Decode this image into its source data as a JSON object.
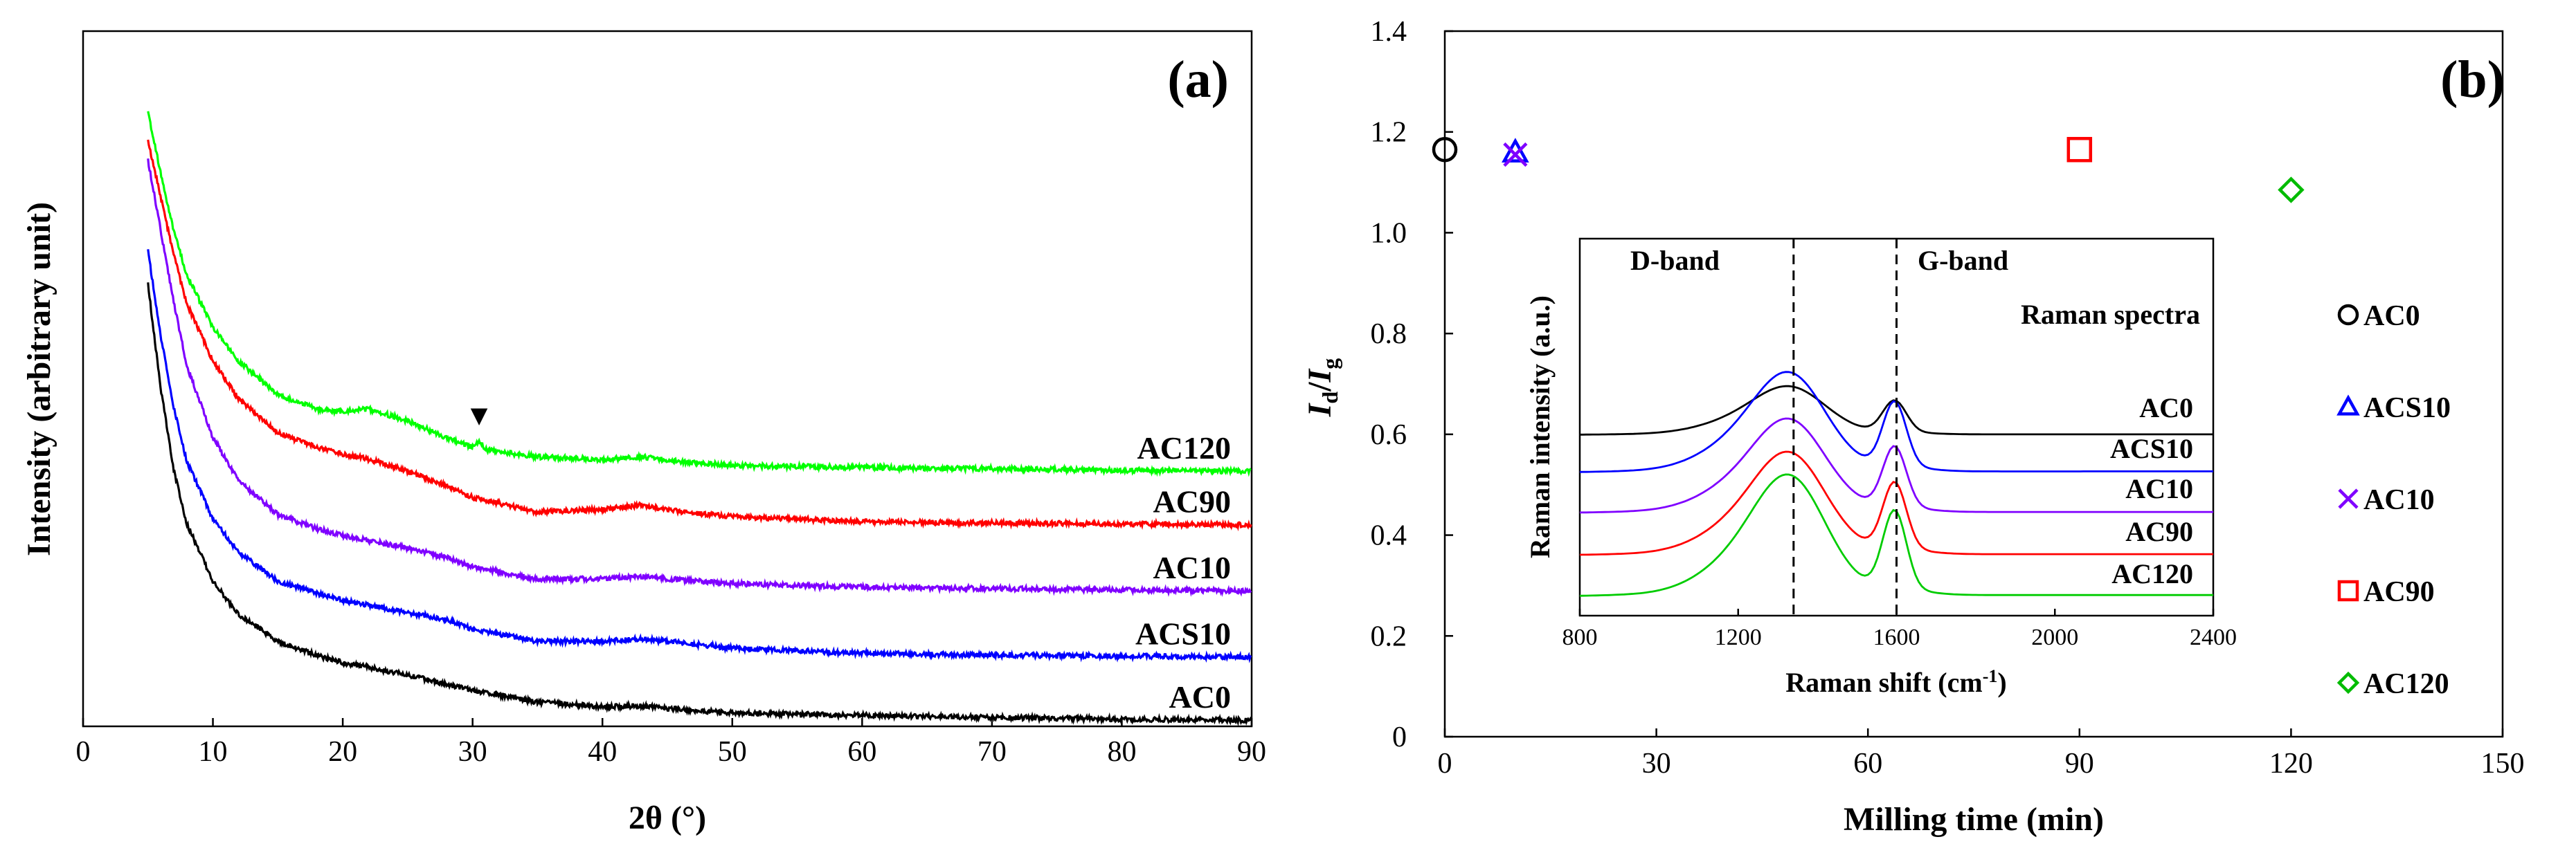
{
  "chart_data": [
    {
      "type": "line",
      "panel_label": "(a)",
      "title": "",
      "xlabel": "2θ (°)",
      "ylabel": "Intensity (arbitrary unit)",
      "xlim": [
        0,
        90
      ],
      "x_ticks": [
        0,
        10,
        20,
        30,
        40,
        50,
        60,
        70,
        80,
        90
      ],
      "y_ticks_shown": false,
      "grid": false,
      "legend": "inline labels at right end of each curve",
      "peak_marker": {
        "x": 30.5,
        "symbol": "▼",
        "series": "AC120"
      },
      "series": [
        {
          "name": "AC0",
          "color": "#000000",
          "points": [
            [
              5,
              9.2
            ],
            [
              6,
              7.0
            ],
            [
              7,
              5.3
            ],
            [
              8,
              4.2
            ],
            [
              10,
              3.0
            ],
            [
              12,
              2.3
            ],
            [
              15,
              1.75
            ],
            [
              18,
              1.45
            ],
            [
              20,
              1.3
            ],
            [
              22,
              1.2
            ],
            [
              25,
              1.05
            ],
            [
              28,
              0.85
            ],
            [
              30,
              0.72
            ],
            [
              35,
              0.48
            ],
            [
              40,
              0.38
            ],
            [
              43,
              0.4
            ],
            [
              46,
              0.32
            ],
            [
              50,
              0.25
            ],
            [
              60,
              0.2
            ],
            [
              70,
              0.16
            ],
            [
              80,
              0.12
            ],
            [
              90,
              0.1
            ]
          ]
        },
        {
          "name": "ACS10",
          "color": "#0000ff",
          "points": [
            [
              5,
              9.9
            ],
            [
              6,
              8.1
            ],
            [
              7,
              6.6
            ],
            [
              8,
              5.5
            ],
            [
              10,
              4.3
            ],
            [
              12,
              3.6
            ],
            [
              15,
              3.0
            ],
            [
              18,
              2.75
            ],
            [
              20,
              2.6
            ],
            [
              22,
              2.5
            ],
            [
              25,
              2.35
            ],
            [
              28,
              2.2
            ],
            [
              30,
              2.0
            ],
            [
              35,
              1.75
            ],
            [
              40,
              1.75
            ],
            [
              43,
              1.8
            ],
            [
              46,
              1.72
            ],
            [
              50,
              1.6
            ],
            [
              60,
              1.5
            ],
            [
              70,
              1.46
            ],
            [
              80,
              1.44
            ],
            [
              90,
              1.42
            ]
          ]
        },
        {
          "name": "AC10",
          "color": "#7f00ff",
          "points": [
            [
              5,
              11.8
            ],
            [
              6,
              10.3
            ],
            [
              7,
              8.8
            ],
            [
              8,
              7.5
            ],
            [
              10,
              6.0
            ],
            [
              12,
              5.1
            ],
            [
              15,
              4.4
            ],
            [
              18,
              4.1
            ],
            [
              20,
              3.95
            ],
            [
              22,
              3.85
            ],
            [
              25,
              3.7
            ],
            [
              28,
              3.5
            ],
            [
              30,
              3.3
            ],
            [
              35,
              3.05
            ],
            [
              40,
              3.05
            ],
            [
              43,
              3.1
            ],
            [
              46,
              3.03
            ],
            [
              50,
              2.95
            ],
            [
              60,
              2.88
            ],
            [
              70,
              2.85
            ],
            [
              80,
              2.82
            ],
            [
              90,
              2.8
            ]
          ]
        },
        {
          "name": "AC90",
          "color": "#ff0000",
          "points": [
            [
              5,
              12.2
            ],
            [
              6,
              11.0
            ],
            [
              7,
              9.8
            ],
            [
              8,
              8.8
            ],
            [
              10,
              7.6
            ],
            [
              12,
              6.8
            ],
            [
              15,
              6.1
            ],
            [
              18,
              5.8
            ],
            [
              20,
              5.65
            ],
            [
              22,
              5.55
            ],
            [
              25,
              5.3
            ],
            [
              28,
              5.0
            ],
            [
              30,
              4.75
            ],
            [
              35,
              4.45
            ],
            [
              40,
              4.5
            ],
            [
              43,
              4.6
            ],
            [
              46,
              4.45
            ],
            [
              50,
              4.35
            ],
            [
              60,
              4.25
            ],
            [
              70,
              4.22
            ],
            [
              80,
              4.2
            ],
            [
              90,
              4.18
            ]
          ]
        },
        {
          "name": "AC120",
          "color": "#00ff00",
          "points": [
            [
              5,
              12.8
            ],
            [
              6,
              11.5
            ],
            [
              7,
              10.3
            ],
            [
              8,
              9.4
            ],
            [
              10,
              8.3
            ],
            [
              12,
              7.6
            ],
            [
              15,
              6.9
            ],
            [
              18,
              6.6
            ],
            [
              20,
              6.55
            ],
            [
              22,
              6.6
            ],
            [
              25,
              6.35
            ],
            [
              28,
              6.0
            ],
            [
              30,
              5.8
            ],
            [
              30.5,
              5.95
            ],
            [
              31,
              5.75
            ],
            [
              35,
              5.6
            ],
            [
              40,
              5.55
            ],
            [
              43,
              5.6
            ],
            [
              46,
              5.5
            ],
            [
              50,
              5.42
            ],
            [
              60,
              5.38
            ],
            [
              70,
              5.35
            ],
            [
              80,
              5.32
            ],
            [
              90,
              5.3
            ]
          ]
        }
      ],
      "series_label_text": [
        "AC120",
        "AC90",
        "AC10",
        "ACS10",
        "AC0"
      ]
    },
    {
      "type": "scatter",
      "panel_label": "(b)",
      "title": "",
      "xlabel": "Milling time (min)",
      "ylabel": "Id/Ig",
      "ylabel_main": "I",
      "ylabel_sub_1": "d",
      "ylabel_slash": "/",
      "ylabel_sub_2": "g",
      "xlim": [
        0,
        150
      ],
      "ylim": [
        0,
        1.4
      ],
      "x_ticks": [
        0,
        30,
        60,
        90,
        120,
        150
      ],
      "y_ticks": [
        "0",
        "0.2",
        "0.4",
        "0.6",
        "0.8",
        "1.0",
        "1.2",
        "1.4"
      ],
      "grid": false,
      "legend": "right",
      "series": [
        {
          "name": "AC0",
          "marker": "circle",
          "color": "#000000",
          "x": 0,
          "y": 1.165
        },
        {
          "name": "ACS10",
          "marker": "triangle",
          "color": "#0000ff",
          "x": 10,
          "y": 1.16
        },
        {
          "name": "AC10",
          "marker": "cross",
          "color": "#7f00ff",
          "x": 10,
          "y": 1.155
        },
        {
          "name": "AC90",
          "marker": "square",
          "color": "#ff0000",
          "x": 90,
          "y": 1.165
        },
        {
          "name": "AC120",
          "marker": "diamond",
          "color": "#00bb00",
          "x": 120,
          "y": 1.085
        }
      ],
      "inset": {
        "type": "line",
        "title": "Raman spectra",
        "xlabel": "Raman shift (cm",
        "xlabel_sup": "-1",
        "xlabel_end": ")",
        "ylabel": "Raman intensity (a.u.)",
        "xlim": [
          800,
          2400
        ],
        "x_ticks": [
          800,
          1200,
          1600,
          2000,
          2400
        ],
        "band_labels": [
          "D-band",
          "G-band"
        ],
        "band_positions": [
          1340,
          1600
        ],
        "offsets": [
          0.0,
          0.24,
          0.5,
          0.77,
          1.0
        ],
        "series": [
          {
            "name": "AC0",
            "color": "#000000"
          },
          {
            "name": "ACS10",
            "color": "#0000ff"
          },
          {
            "name": "AC10",
            "color": "#7f00ff"
          },
          {
            "name": "AC90",
            "color": "#ff0000"
          },
          {
            "name": "AC120",
            "color": "#00cc00"
          }
        ]
      }
    }
  ]
}
